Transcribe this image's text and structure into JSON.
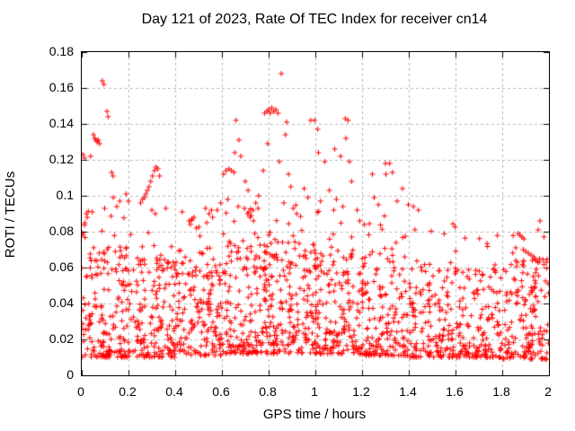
{
  "chart_data": {
    "type": "scatter",
    "title": "Day 121 of 2023, Rate Of TEC Index for receiver cn14",
    "xlabel": "GPS time / hours",
    "ylabel": "ROTI / TECUs",
    "xlim": [
      0,
      2
    ],
    "ylim": [
      0,
      0.18
    ],
    "xticks": [
      "0",
      "0.2",
      "0.4",
      "0.6",
      "0.8",
      "1",
      "1.2",
      "1.4",
      "1.6",
      "1.8",
      "2"
    ],
    "yticks": [
      "0",
      "0.02",
      "0.04",
      "0.06",
      "0.08",
      "0.1",
      "0.12",
      "0.14",
      "0.16",
      "0.18"
    ],
    "grid": true,
    "legend": "none",
    "marker": "plus",
    "marker_color": "#ff0000",
    "grid_color": "#b8b8b8",
    "axis_color": "#000000",
    "background": "#ffffff",
    "seed": 20231121,
    "feature_points": [
      [
        0.005,
        0.123
      ],
      [
        0.012,
        0.121
      ],
      [
        0.038,
        0.122
      ],
      [
        0.05,
        0.134
      ],
      [
        0.056,
        0.132
      ],
      [
        0.061,
        0.131
      ],
      [
        0.066,
        0.13
      ],
      [
        0.071,
        0.131
      ],
      [
        0.076,
        0.129
      ],
      [
        0.088,
        0.164
      ],
      [
        0.095,
        0.162
      ],
      [
        0.108,
        0.147
      ],
      [
        0.113,
        0.144
      ],
      [
        0.128,
        0.113
      ],
      [
        0.134,
        0.111
      ],
      [
        0.135,
        0.099
      ],
      [
        0.15,
        0.094
      ],
      [
        0.163,
        0.097
      ],
      [
        0.19,
        0.101
      ],
      [
        0.2,
        0.097
      ],
      [
        0.02,
        0.09
      ],
      [
        0.045,
        0.091
      ],
      [
        0.098,
        0.093
      ],
      [
        0.252,
        0.096
      ],
      [
        0.26,
        0.098
      ],
      [
        0.268,
        0.099
      ],
      [
        0.274,
        0.101
      ],
      [
        0.281,
        0.103
      ],
      [
        0.288,
        0.105
      ],
      [
        0.295,
        0.108
      ],
      [
        0.303,
        0.111
      ],
      [
        0.311,
        0.114
      ],
      [
        0.318,
        0.116
      ],
      [
        0.326,
        0.115
      ],
      [
        0.333,
        0.111
      ],
      [
        0.3,
        0.092
      ],
      [
        0.315,
        0.09
      ],
      [
        0.36,
        0.093
      ],
      [
        0.43,
        0.091
      ],
      [
        0.46,
        0.086
      ],
      [
        0.465,
        0.084
      ],
      [
        0.472,
        0.087
      ],
      [
        0.48,
        0.088
      ],
      [
        0.49,
        0.082
      ],
      [
        0.53,
        0.093
      ],
      [
        0.535,
        0.085
      ],
      [
        0.545,
        0.09
      ],
      [
        0.555,
        0.092
      ],
      [
        0.56,
        0.088
      ],
      [
        0.607,
        0.112
      ],
      [
        0.618,
        0.114
      ],
      [
        0.63,
        0.115
      ],
      [
        0.641,
        0.114
      ],
      [
        0.652,
        0.113
      ],
      [
        0.66,
        0.142
      ],
      [
        0.655,
        0.124
      ],
      [
        0.673,
        0.131
      ],
      [
        0.681,
        0.122
      ],
      [
        0.7,
        0.108
      ],
      [
        0.712,
        0.103
      ],
      [
        0.757,
        0.1
      ],
      [
        0.777,
        0.114
      ],
      [
        0.58,
        0.092
      ],
      [
        0.595,
        0.096
      ],
      [
        0.625,
        0.098
      ],
      [
        0.67,
        0.094
      ],
      [
        0.71,
        0.09
      ],
      [
        0.715,
        0.091
      ],
      [
        0.72,
        0.088
      ],
      [
        0.725,
        0.089
      ],
      [
        0.733,
        0.092
      ],
      [
        0.735,
        0.086
      ],
      [
        0.745,
        0.096
      ],
      [
        0.755,
        0.093
      ],
      [
        0.783,
        0.146
      ],
      [
        0.792,
        0.147
      ],
      [
        0.8,
        0.148
      ],
      [
        0.807,
        0.146
      ],
      [
        0.814,
        0.149
      ],
      [
        0.822,
        0.147
      ],
      [
        0.831,
        0.148
      ],
      [
        0.84,
        0.146
      ],
      [
        0.854,
        0.168
      ],
      [
        0.796,
        0.129
      ],
      [
        0.846,
        0.119
      ],
      [
        0.872,
        0.134
      ],
      [
        0.877,
        0.141
      ],
      [
        0.885,
        0.112
      ],
      [
        0.895,
        0.105
      ],
      [
        0.865,
        0.096
      ],
      [
        0.905,
        0.093
      ],
      [
        0.92,
        0.09
      ],
      [
        0.952,
        0.104
      ],
      [
        0.968,
        0.099
      ],
      [
        0.98,
        0.142
      ],
      [
        0.997,
        0.142
      ],
      [
        1.01,
        0.137
      ],
      [
        1.013,
        0.124
      ],
      [
        1.04,
        0.119
      ],
      [
        1.06,
        0.103
      ],
      [
        1.083,
        0.126
      ],
      [
        1.09,
        0.098
      ],
      [
        1.108,
        0.122
      ],
      [
        1.118,
        0.094
      ],
      [
        1.022,
        0.097
      ],
      [
        1.128,
        0.143
      ],
      [
        1.14,
        0.142
      ],
      [
        1.131,
        0.132
      ],
      [
        1.146,
        0.119
      ],
      [
        1.155,
        0.108
      ],
      [
        1.19,
        0.086
      ],
      [
        1.21,
        0.084
      ],
      [
        1.244,
        0.112
      ],
      [
        1.252,
        0.099
      ],
      [
        1.27,
        0.095
      ],
      [
        1.3,
        0.118
      ],
      [
        1.318,
        0.118
      ],
      [
        1.302,
        0.112
      ],
      [
        1.33,
        0.113
      ],
      [
        1.35,
        0.097
      ],
      [
        1.373,
        0.104
      ],
      [
        1.398,
        0.095
      ],
      [
        1.42,
        0.094
      ],
      [
        1.441,
        0.092
      ],
      [
        1.868,
        0.079
      ],
      [
        1.876,
        0.078
      ],
      [
        1.884,
        0.077
      ],
      [
        1.893,
        0.076
      ],
      [
        1.858,
        0.071
      ],
      [
        1.89,
        0.07
      ],
      [
        1.9,
        0.069
      ],
      [
        1.912,
        0.068
      ],
      [
        1.923,
        0.067
      ],
      [
        1.935,
        0.066
      ],
      [
        1.944,
        0.064
      ],
      [
        1.952,
        0.063
      ],
      [
        1.954,
        0.081
      ],
      [
        1.962,
        0.086
      ]
    ],
    "band_segments": [
      {
        "t0": 0.0,
        "t1": 0.2,
        "n": 158,
        "y_min": 0.01,
        "y_max": 0.072,
        "skew": 1.8
      },
      {
        "t0": 0.2,
        "t1": 0.4,
        "n": 150,
        "y_min": 0.01,
        "y_max": 0.066,
        "skew": 1.8
      },
      {
        "t0": 0.4,
        "t1": 0.6,
        "n": 150,
        "y_min": 0.011,
        "y_max": 0.07,
        "skew": 1.8
      },
      {
        "t0": 0.6,
        "t1": 0.8,
        "n": 158,
        "y_min": 0.012,
        "y_max": 0.075,
        "skew": 1.7
      },
      {
        "t0": 0.8,
        "t1": 1.0,
        "n": 158,
        "y_min": 0.012,
        "y_max": 0.075,
        "skew": 1.7
      },
      {
        "t0": 1.0,
        "t1": 1.2,
        "n": 158,
        "y_min": 0.012,
        "y_max": 0.072,
        "skew": 1.7
      },
      {
        "t0": 1.2,
        "t1": 1.4,
        "n": 150,
        "y_min": 0.011,
        "y_max": 0.068,
        "skew": 1.8
      },
      {
        "t0": 1.4,
        "t1": 1.6,
        "n": 140,
        "y_min": 0.01,
        "y_max": 0.062,
        "skew": 1.9
      },
      {
        "t0": 1.6,
        "t1": 1.8,
        "n": 145,
        "y_min": 0.01,
        "y_max": 0.06,
        "skew": 1.9
      },
      {
        "t0": 1.8,
        "t1": 2.0,
        "n": 150,
        "y_min": 0.009,
        "y_max": 0.065,
        "skew": 1.9
      }
    ],
    "tail_segments": [
      {
        "t0": 0.0,
        "t1": 0.2,
        "n": 22,
        "y_min": 0.055,
        "y_max": 0.092
      },
      {
        "t0": 0.2,
        "t1": 0.4,
        "n": 16,
        "y_min": 0.055,
        "y_max": 0.088
      },
      {
        "t0": 0.4,
        "t1": 0.6,
        "n": 20,
        "y_min": 0.055,
        "y_max": 0.09
      },
      {
        "t0": 0.6,
        "t1": 0.8,
        "n": 24,
        "y_min": 0.055,
        "y_max": 0.095
      },
      {
        "t0": 0.8,
        "t1": 1.0,
        "n": 22,
        "y_min": 0.055,
        "y_max": 0.095
      },
      {
        "t0": 1.0,
        "t1": 1.2,
        "n": 20,
        "y_min": 0.055,
        "y_max": 0.094
      },
      {
        "t0": 1.2,
        "t1": 1.4,
        "n": 16,
        "y_min": 0.055,
        "y_max": 0.09
      },
      {
        "t0": 1.4,
        "t1": 1.6,
        "n": 12,
        "y_min": 0.055,
        "y_max": 0.086
      },
      {
        "t0": 1.6,
        "t1": 1.8,
        "n": 10,
        "y_min": 0.055,
        "y_max": 0.078
      },
      {
        "t0": 1.8,
        "t1": 2.0,
        "n": 12,
        "y_min": 0.055,
        "y_max": 0.078
      }
    ]
  }
}
